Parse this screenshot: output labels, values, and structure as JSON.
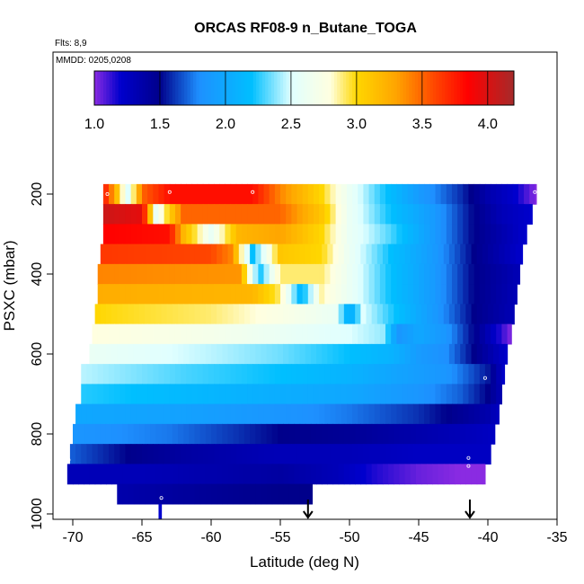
{
  "chart_data": {
    "type": "heatmap",
    "title": "ORCAS RF08-9 n_Butane_TOGA",
    "annotation_top": "Flts: 8,9",
    "annotation_inner": "MMDD: 0205,0208",
    "xlabel": "Latitude (deg N)",
    "ylabel": "PSXC (mbar)",
    "xlim": [
      -72.5,
      -35
    ],
    "ylim": [
      1000,
      90
    ],
    "y_reversed": true,
    "x_ticks": [
      -70,
      -65,
      -60,
      -55,
      -50,
      -45,
      -40,
      -35
    ],
    "x_tick_labels": [
      "-70",
      "-65",
      "-60",
      "-55",
      "-50",
      "-45",
      "-40",
      "-35"
    ],
    "y_ticks": [
      200,
      400,
      600,
      800,
      1000
    ],
    "y_tick_labels": [
      "200",
      "400",
      "600",
      "800",
      "1000"
    ],
    "colorbar": {
      "range": [
        1.0,
        4.2
      ],
      "ticks": [
        1.0,
        1.5,
        2.0,
        2.5,
        3.0,
        3.5,
        4.0
      ],
      "tick_labels": [
        "1.0",
        "1.5",
        "2.0",
        "2.5",
        "3.0",
        "3.5",
        "4.0"
      ],
      "stops": [
        [
          1.0,
          "#8a2be2"
        ],
        [
          1.2,
          "#0000cd"
        ],
        [
          1.5,
          "#00008b"
        ],
        [
          1.8,
          "#1e90ff"
        ],
        [
          2.2,
          "#00bfff"
        ],
        [
          2.5,
          "#e0ffff"
        ],
        [
          2.8,
          "#ffffe0"
        ],
        [
          3.0,
          "#ffd700"
        ],
        [
          3.3,
          "#ffa500"
        ],
        [
          3.6,
          "#ff4500"
        ],
        [
          3.85,
          "#ff0000"
        ],
        [
          4.2,
          "#a52a2a"
        ]
      ]
    },
    "rows": [
      {
        "p": 200,
        "lat": [
          -67.8,
          -36.5
        ],
        "knots": [
          [
            -67.8,
            3.8
          ],
          [
            -67,
            3.3
          ],
          [
            -66,
            2.5
          ],
          [
            -65,
            3.5
          ],
          [
            -63,
            3.8
          ],
          [
            -57,
            3.8
          ],
          [
            -55,
            3.4
          ],
          [
            -52,
            3.0
          ],
          [
            -50,
            2.6
          ],
          [
            -48,
            2.3
          ],
          [
            -45,
            1.9
          ],
          [
            -42,
            1.6
          ],
          [
            -40,
            1.35
          ],
          [
            -38,
            1.2
          ],
          [
            -36.5,
            1.0
          ]
        ]
      },
      {
        "p": 250,
        "lat": [
          -67.8,
          -36.8
        ],
        "knots": [
          [
            -67.8,
            4.05
          ],
          [
            -65,
            3.95
          ],
          [
            -64,
            2.6
          ],
          [
            -62,
            3.5
          ],
          [
            -55,
            3.5
          ],
          [
            -52,
            3.1
          ],
          [
            -50,
            2.6
          ],
          [
            -47,
            2.2
          ],
          [
            -44,
            1.9
          ],
          [
            -41,
            1.5
          ],
          [
            -39,
            1.3
          ],
          [
            -36.8,
            1.2
          ]
        ]
      },
      {
        "p": 300,
        "lat": [
          -67.8,
          -37.2
        ],
        "knots": [
          [
            -67.8,
            3.85
          ],
          [
            -63,
            3.8
          ],
          [
            -62,
            3.2
          ],
          [
            -60,
            2.6
          ],
          [
            -58,
            3.2
          ],
          [
            -55,
            3.3
          ],
          [
            -52,
            3.0
          ],
          [
            -50,
            2.6
          ],
          [
            -47,
            2.3
          ],
          [
            -44,
            1.9
          ],
          [
            -41,
            1.5
          ],
          [
            -37.2,
            1.2
          ]
        ]
      },
      {
        "p": 350,
        "lat": [
          -68.0,
          -37.5
        ],
        "knots": [
          [
            -68,
            3.65
          ],
          [
            -60,
            3.6
          ],
          [
            -58.5,
            3.4
          ],
          [
            -57,
            2.2
          ],
          [
            -55,
            3.1
          ],
          [
            -52,
            3.0
          ],
          [
            -50,
            2.6
          ],
          [
            -47,
            2.2
          ],
          [
            -44,
            1.9
          ],
          [
            -41,
            1.5
          ],
          [
            -37.5,
            1.2
          ]
        ]
      },
      {
        "p": 400,
        "lat": [
          -68.2,
          -37.7
        ],
        "knots": [
          [
            -68.2,
            3.4
          ],
          [
            -58,
            3.35
          ],
          [
            -56.5,
            2.2
          ],
          [
            -55,
            2.9
          ],
          [
            -52,
            2.9
          ],
          [
            -50,
            2.6
          ],
          [
            -47,
            2.2
          ],
          [
            -44,
            1.9
          ],
          [
            -41,
            1.5
          ],
          [
            -37.7,
            1.3
          ]
        ]
      },
      {
        "p": 450,
        "lat": [
          -68.2,
          -37.9
        ],
        "knots": [
          [
            -68.2,
            3.25
          ],
          [
            -57,
            3.2
          ],
          [
            -55,
            2.9
          ],
          [
            -53.5,
            2.1
          ],
          [
            -52,
            2.85
          ],
          [
            -50,
            2.6
          ],
          [
            -47,
            2.2
          ],
          [
            -44,
            1.9
          ],
          [
            -41,
            1.5
          ],
          [
            -37.9,
            1.3
          ]
        ]
      },
      {
        "p": 500,
        "lat": [
          -68.4,
          -38.1
        ],
        "knots": [
          [
            -68.4,
            3.0
          ],
          [
            -60,
            2.9
          ],
          [
            -55,
            2.75
          ],
          [
            -51,
            2.6
          ],
          [
            -50,
            2.0
          ],
          [
            -49,
            2.5
          ],
          [
            -47,
            2.25
          ],
          [
            -44,
            1.9
          ],
          [
            -41,
            1.5
          ],
          [
            -38.1,
            1.3
          ]
        ]
      },
      {
        "p": 550,
        "lat": [
          -68.6,
          -38.3
        ],
        "knots": [
          [
            -68.6,
            2.8
          ],
          [
            -60,
            2.7
          ],
          [
            -55,
            2.6
          ],
          [
            -50,
            2.5
          ],
          [
            -47.5,
            2.4
          ],
          [
            -46.5,
            1.85
          ],
          [
            -45,
            2.0
          ],
          [
            -43,
            1.85
          ],
          [
            -41,
            1.5
          ],
          [
            -38.3,
            1.0
          ]
        ]
      },
      {
        "p": 600,
        "lat": [
          -68.8,
          -38.6
        ],
        "knots": [
          [
            -68.8,
            2.6
          ],
          [
            -60,
            2.45
          ],
          [
            -55,
            2.35
          ],
          [
            -50,
            2.2
          ],
          [
            -47,
            2.1
          ],
          [
            -45,
            1.9
          ],
          [
            -43,
            1.8
          ],
          [
            -41,
            1.5
          ],
          [
            -38.6,
            1.2
          ]
        ]
      },
      {
        "p": 650,
        "lat": [
          -69.4,
          -38.8
        ],
        "knots": [
          [
            -69.4,
            2.45
          ],
          [
            -62,
            2.3
          ],
          [
            -55,
            2.2
          ],
          [
            -50,
            2.1
          ],
          [
            -46,
            1.95
          ],
          [
            -43,
            1.85
          ],
          [
            -40,
            1.55
          ],
          [
            -38.8,
            1.2
          ]
        ]
      },
      {
        "p": 700,
        "lat": [
          -69.4,
          -39.0
        ],
        "knots": [
          [
            -69.4,
            2.25
          ],
          [
            -62,
            2.15
          ],
          [
            -55,
            2.05
          ],
          [
            -50,
            2.0
          ],
          [
            -45,
            1.85
          ],
          [
            -42,
            1.7
          ],
          [
            -40,
            1.5
          ],
          [
            -39,
            1.3
          ]
        ]
      },
      {
        "p": 750,
        "lat": [
          -69.8,
          -39.2
        ],
        "knots": [
          [
            -69.8,
            2.0
          ],
          [
            -62,
            1.95
          ],
          [
            -55,
            1.85
          ],
          [
            -50,
            1.75
          ],
          [
            -45,
            1.6
          ],
          [
            -42,
            1.45
          ],
          [
            -40,
            1.35
          ],
          [
            -39.2,
            1.25
          ]
        ]
      },
      {
        "p": 800,
        "lat": [
          -70.0,
          -39.5
        ],
        "knots": [
          [
            -70,
            1.85
          ],
          [
            -63,
            1.75
          ],
          [
            -58,
            1.6
          ],
          [
            -55,
            1.5
          ],
          [
            -50,
            1.45
          ],
          [
            -45,
            1.35
          ],
          [
            -42,
            1.3
          ],
          [
            -39.5,
            1.25
          ]
        ]
      },
      {
        "p": 850,
        "lat": [
          -70.2,
          -39.8
        ],
        "knots": [
          [
            -70.2,
            1.7
          ],
          [
            -66,
            1.5
          ],
          [
            -62,
            1.4
          ],
          [
            -55,
            1.3
          ],
          [
            -50,
            1.3
          ],
          [
            -45,
            1.25
          ],
          [
            -39.8,
            1.25
          ]
        ]
      },
      {
        "p": 900,
        "lat": [
          -70.4,
          -40.2
        ],
        "knots": [
          [
            -70.4,
            1.3
          ],
          [
            -65,
            1.3
          ],
          [
            -55,
            1.4
          ],
          [
            -51,
            1.3
          ],
          [
            -48,
            1.15
          ],
          [
            -45,
            1.05
          ],
          [
            -42,
            1.0
          ],
          [
            -40.2,
            1.0
          ]
        ]
      },
      {
        "p": 950,
        "lat": [
          -66.8,
          -52.7
        ],
        "knots": [
          [
            -66.8,
            1.35
          ],
          [
            -60,
            1.45
          ],
          [
            -55,
            1.5
          ],
          [
            -52.7,
            1.5
          ]
        ]
      },
      {
        "p": 1000,
        "lat": [
          -63.8,
          -63.6
        ],
        "knots": [
          [
            -63.8,
            1.2
          ],
          [
            -63.6,
            1.2
          ]
        ]
      }
    ],
    "sample_markers": [
      {
        "lat": -67.5,
        "p": 200
      },
      {
        "lat": -63,
        "p": 195
      },
      {
        "lat": -57,
        "p": 195
      },
      {
        "lat": -36.6,
        "p": 195
      },
      {
        "lat": -40.2,
        "p": 660
      },
      {
        "lat": -41.4,
        "p": 860
      },
      {
        "lat": -41.4,
        "p": 880
      },
      {
        "lat": -70.3,
        "p": 865
      },
      {
        "lat": -63.6,
        "p": 960
      }
    ],
    "arrows": [
      {
        "lat": -53,
        "p": 1000
      },
      {
        "lat": -41.3,
        "p": 1000
      }
    ]
  }
}
